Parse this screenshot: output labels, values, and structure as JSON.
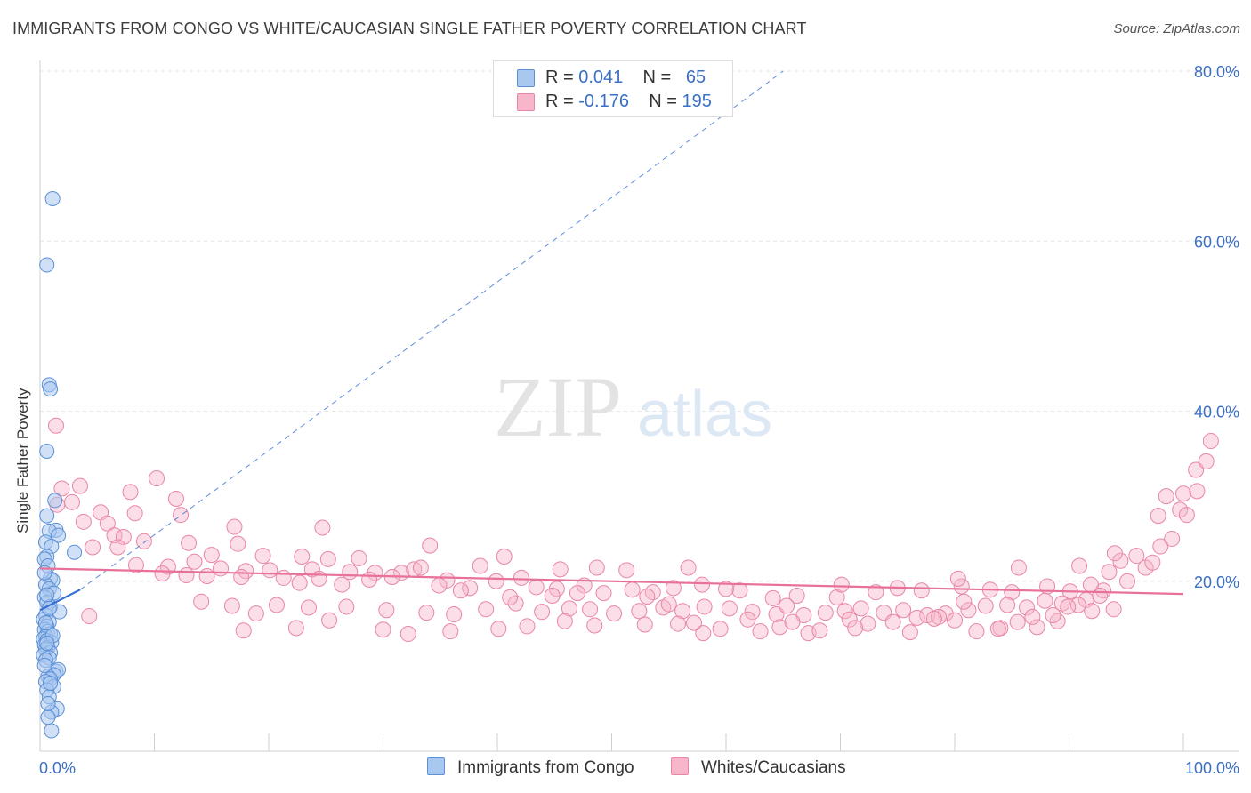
{
  "title": "IMMIGRANTS FROM CONGO VS WHITE/CAUCASIAN SINGLE FATHER POVERTY CORRELATION CHART",
  "source": "Source: ZipAtlas.com",
  "watermark": {
    "zip": "ZIP",
    "atlas": "atlas"
  },
  "colors": {
    "blue_fill": "#a9c8f0",
    "blue_stroke": "#5b8fd6",
    "blue_line": "#3370d4",
    "pink_fill": "#f7b6c9",
    "pink_stroke": "#e986a5",
    "pink_line": "#e8719a",
    "axis_label": "#3a6fc4"
  },
  "legend": {
    "rows": [
      {
        "r_label": "R = ",
        "r_value": "0.041",
        "n_label": "N = ",
        "n_value": "65"
      },
      {
        "r_label": "R = ",
        "r_value": "-0.176",
        "n_label": "N = ",
        "n_value": "195"
      }
    ]
  },
  "chart_data": {
    "type": "scatter",
    "title": "IMMIGRANTS FROM CONGO VS WHITE/CAUCASIAN SINGLE FATHER POVERTY CORRELATION CHART",
    "xlabel": "",
    "ylabel": "Single Father Poverty",
    "xlim": [
      0,
      100
    ],
    "ylim": [
      0,
      80
    ],
    "x_tick_labels": [
      "0.0%",
      "100.0%"
    ],
    "y_ticks": [
      20,
      40,
      60,
      80
    ],
    "y_tick_labels": [
      "20.0%",
      "40.0%",
      "60.0%",
      "80.0%"
    ],
    "series": [
      {
        "name": "Immigrants from Congo",
        "color": "#a9c8f0",
        "trend": {
          "x0": 0,
          "y0": 16.6,
          "x1": 3.5,
          "y1": 19.0,
          "dashed_ext_x1": 65,
          "dashed_ext_y1": 80
        },
        "points": [
          [
            1.1,
            65.0
          ],
          [
            0.6,
            57.2
          ],
          [
            0.8,
            43.1
          ],
          [
            0.9,
            42.6
          ],
          [
            0.6,
            35.3
          ],
          [
            1.3,
            29.5
          ],
          [
            0.6,
            27.7
          ],
          [
            1.4,
            26.0
          ],
          [
            0.8,
            25.9
          ],
          [
            1.6,
            25.4
          ],
          [
            0.5,
            24.6
          ],
          [
            1.0,
            24.1
          ],
          [
            0.6,
            22.9
          ],
          [
            0.4,
            22.6
          ],
          [
            0.7,
            21.8
          ],
          [
            0.9,
            20.3
          ],
          [
            1.1,
            20.1
          ],
          [
            0.5,
            19.6
          ],
          [
            0.8,
            19.1
          ],
          [
            1.2,
            18.6
          ],
          [
            0.4,
            18.1
          ],
          [
            0.6,
            17.5
          ],
          [
            0.9,
            17.0
          ],
          [
            1.7,
            16.4
          ],
          [
            0.5,
            16.0
          ],
          [
            0.3,
            15.5
          ],
          [
            0.8,
            15.2
          ],
          [
            0.6,
            14.7
          ],
          [
            0.4,
            14.3
          ],
          [
            0.7,
            14.1
          ],
          [
            0.9,
            13.8
          ],
          [
            0.5,
            13.5
          ],
          [
            0.3,
            13.2
          ],
          [
            0.6,
            13.0
          ],
          [
            1.0,
            12.8
          ],
          [
            0.4,
            12.5
          ],
          [
            0.7,
            12.2
          ],
          [
            0.5,
            12.0
          ],
          [
            0.9,
            11.6
          ],
          [
            0.3,
            11.3
          ],
          [
            0.8,
            11.0
          ],
          [
            0.5,
            10.7
          ],
          [
            1.4,
            9.4
          ],
          [
            1.6,
            9.6
          ],
          [
            1.2,
            9.0
          ],
          [
            0.7,
            8.8
          ],
          [
            0.9,
            8.5
          ],
          [
            0.5,
            8.2
          ],
          [
            1.2,
            7.6
          ],
          [
            0.6,
            7.2
          ],
          [
            0.8,
            6.4
          ],
          [
            1.5,
            5.0
          ],
          [
            1.0,
            4.6
          ],
          [
            0.7,
            4.0
          ],
          [
            1.0,
            2.4
          ],
          [
            3.0,
            23.4
          ],
          [
            0.4,
            21.0
          ],
          [
            0.6,
            18.4
          ],
          [
            0.8,
            16.8
          ],
          [
            0.5,
            15.1
          ],
          [
            1.1,
            13.6
          ],
          [
            0.6,
            12.7
          ],
          [
            0.4,
            10.1
          ],
          [
            0.9,
            8.0
          ],
          [
            0.7,
            5.6
          ]
        ]
      },
      {
        "name": "Whites/Caucasians",
        "color": "#f7b6c9",
        "trend": {
          "x0": 0,
          "y0": 21.5,
          "x1": 100,
          "y1": 18.5
        },
        "points": [
          [
            1.4,
            38.3
          ],
          [
            3.5,
            31.2
          ],
          [
            10.2,
            32.1
          ],
          [
            1.9,
            30.9
          ],
          [
            2.8,
            29.3
          ],
          [
            7.9,
            30.5
          ],
          [
            11.9,
            29.7
          ],
          [
            1.5,
            29.0
          ],
          [
            5.3,
            28.1
          ],
          [
            8.3,
            28.0
          ],
          [
            12.3,
            27.8
          ],
          [
            3.8,
            27.0
          ],
          [
            17.0,
            26.4
          ],
          [
            5.9,
            26.8
          ],
          [
            24.7,
            26.3
          ],
          [
            6.5,
            25.4
          ],
          [
            7.3,
            25.2
          ],
          [
            13.0,
            24.5
          ],
          [
            9.1,
            24.7
          ],
          [
            17.3,
            24.4
          ],
          [
            4.6,
            24.0
          ],
          [
            6.8,
            24.0
          ],
          [
            34.1,
            24.2
          ],
          [
            15.0,
            23.1
          ],
          [
            19.5,
            23.0
          ],
          [
            22.9,
            22.9
          ],
          [
            25.2,
            22.6
          ],
          [
            27.9,
            22.7
          ],
          [
            40.6,
            22.9
          ],
          [
            13.5,
            22.3
          ],
          [
            8.4,
            21.9
          ],
          [
            11.2,
            21.7
          ],
          [
            15.8,
            21.5
          ],
          [
            18.0,
            21.2
          ],
          [
            20.1,
            21.3
          ],
          [
            23.8,
            21.4
          ],
          [
            27.1,
            21.1
          ],
          [
            29.3,
            21.0
          ],
          [
            31.6,
            21.0
          ],
          [
            32.7,
            21.4
          ],
          [
            33.3,
            21.6
          ],
          [
            38.5,
            21.8
          ],
          [
            10.7,
            20.9
          ],
          [
            12.8,
            20.7
          ],
          [
            14.6,
            20.6
          ],
          [
            17.6,
            20.5
          ],
          [
            21.3,
            20.4
          ],
          [
            24.4,
            20.3
          ],
          [
            28.8,
            20.2
          ],
          [
            30.8,
            20.5
          ],
          [
            35.6,
            20.1
          ],
          [
            39.9,
            20.0
          ],
          [
            42.1,
            20.4
          ],
          [
            45.5,
            21.4
          ],
          [
            48.7,
            21.6
          ],
          [
            51.3,
            21.3
          ],
          [
            56.7,
            21.6
          ],
          [
            22.7,
            19.8
          ],
          [
            26.4,
            19.6
          ],
          [
            34.9,
            19.5
          ],
          [
            37.6,
            19.2
          ],
          [
            43.4,
            19.3
          ],
          [
            45.2,
            19.1
          ],
          [
            47.6,
            19.5
          ],
          [
            49.3,
            18.6
          ],
          [
            51.8,
            19.0
          ],
          [
            53.6,
            18.7
          ],
          [
            55.4,
            19.2
          ],
          [
            57.9,
            19.6
          ],
          [
            61.2,
            18.9
          ],
          [
            66.2,
            18.3
          ],
          [
            69.7,
            18.1
          ],
          [
            73.1,
            18.7
          ],
          [
            77.1,
            18.9
          ],
          [
            80.6,
            19.4
          ],
          [
            83.1,
            19.0
          ],
          [
            85.0,
            18.7
          ],
          [
            88.1,
            19.4
          ],
          [
            90.1,
            18.8
          ],
          [
            93.0,
            18.9
          ],
          [
            95.1,
            20.0
          ],
          [
            4.3,
            15.9
          ],
          [
            14.1,
            17.6
          ],
          [
            16.8,
            17.1
          ],
          [
            18.9,
            16.2
          ],
          [
            20.7,
            17.2
          ],
          [
            23.5,
            16.9
          ],
          [
            26.8,
            17.0
          ],
          [
            30.3,
            16.6
          ],
          [
            33.8,
            16.3
          ],
          [
            36.2,
            16.1
          ],
          [
            39.0,
            16.7
          ],
          [
            41.6,
            17.4
          ],
          [
            43.9,
            16.4
          ],
          [
            46.3,
            16.8
          ],
          [
            48.1,
            16.7
          ],
          [
            50.2,
            16.2
          ],
          [
            52.4,
            16.5
          ],
          [
            54.5,
            16.9
          ],
          [
            56.2,
            16.5
          ],
          [
            58.1,
            17.0
          ],
          [
            60.3,
            16.8
          ],
          [
            62.3,
            16.4
          ],
          [
            64.4,
            16.1
          ],
          [
            66.8,
            16.0
          ],
          [
            68.7,
            16.3
          ],
          [
            70.4,
            16.5
          ],
          [
            71.8,
            16.8
          ],
          [
            73.8,
            16.3
          ],
          [
            75.5,
            16.6
          ],
          [
            77.6,
            16.0
          ],
          [
            79.2,
            16.2
          ],
          [
            81.2,
            16.6
          ],
          [
            82.7,
            17.1
          ],
          [
            84.6,
            17.2
          ],
          [
            86.3,
            16.9
          ],
          [
            87.9,
            17.7
          ],
          [
            89.4,
            17.4
          ],
          [
            91.5,
            17.8
          ],
          [
            92.7,
            18.3
          ],
          [
            17.8,
            14.2
          ],
          [
            22.4,
            14.5
          ],
          [
            25.3,
            15.4
          ],
          [
            30.0,
            14.3
          ],
          [
            35.9,
            14.1
          ],
          [
            40.1,
            14.4
          ],
          [
            45.9,
            15.3
          ],
          [
            48.5,
            14.8
          ],
          [
            55.8,
            15.0
          ],
          [
            58.0,
            13.9
          ],
          [
            59.5,
            14.4
          ],
          [
            61.9,
            15.5
          ],
          [
            63.0,
            14.1
          ],
          [
            64.7,
            14.6
          ],
          [
            65.8,
            15.2
          ],
          [
            67.2,
            13.9
          ],
          [
            68.2,
            14.2
          ],
          [
            70.8,
            15.5
          ],
          [
            72.4,
            15.0
          ],
          [
            74.6,
            15.2
          ],
          [
            76.7,
            15.7
          ],
          [
            78.6,
            15.8
          ],
          [
            80.0,
            15.4
          ],
          [
            81.9,
            14.1
          ],
          [
            84.0,
            14.5
          ],
          [
            85.5,
            15.2
          ],
          [
            87.2,
            14.6
          ],
          [
            89.0,
            15.3
          ],
          [
            92.0,
            16.5
          ],
          [
            93.9,
            16.7
          ],
          [
            32.2,
            13.8
          ],
          [
            42.6,
            14.7
          ],
          [
            52.9,
            14.9
          ],
          [
            57.2,
            15.1
          ],
          [
            71.3,
            14.5
          ],
          [
            76.1,
            14.0
          ],
          [
            78.2,
            15.6
          ],
          [
            83.8,
            14.4
          ],
          [
            86.8,
            15.8
          ],
          [
            88.6,
            16.0
          ],
          [
            90.8,
            17.2
          ],
          [
            91.9,
            19.6
          ],
          [
            93.5,
            21.1
          ],
          [
            94.5,
            22.4
          ],
          [
            95.9,
            23.0
          ],
          [
            96.7,
            21.6
          ],
          [
            97.3,
            22.2
          ],
          [
            98.0,
            24.1
          ],
          [
            99.0,
            25.0
          ],
          [
            97.8,
            27.7
          ],
          [
            98.5,
            30.0
          ],
          [
            99.7,
            28.4
          ],
          [
            100.3,
            27.8
          ],
          [
            100.0,
            30.3
          ],
          [
            101.2,
            30.6
          ],
          [
            101.1,
            33.1
          ],
          [
            102.0,
            34.1
          ],
          [
            102.4,
            36.5
          ],
          [
            94.0,
            23.3
          ],
          [
            90.9,
            21.8
          ],
          [
            85.6,
            21.6
          ],
          [
            80.3,
            20.3
          ],
          [
            75.0,
            19.2
          ],
          [
            70.1,
            19.6
          ],
          [
            64.1,
            18.0
          ],
          [
            60.0,
            19.1
          ],
          [
            53.1,
            18.2
          ],
          [
            47.0,
            18.6
          ],
          [
            41.1,
            18.1
          ],
          [
            36.8,
            18.9
          ],
          [
            44.8,
            18.3
          ],
          [
            55.0,
            17.3
          ],
          [
            65.3,
            17.1
          ],
          [
            80.8,
            17.6
          ],
          [
            89.9,
            17.0
          ]
        ]
      }
    ]
  },
  "bottom_legend": [
    {
      "label": "Immigrants from Congo"
    },
    {
      "label": "Whites/Caucasians"
    }
  ]
}
